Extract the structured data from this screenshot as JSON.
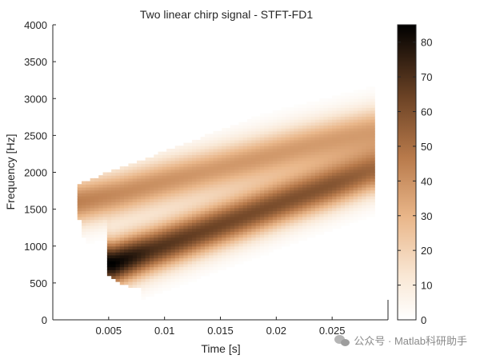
{
  "chart_data": {
    "type": "heatmap",
    "title": "Two linear chirp signal - STFT-FD1",
    "xlabel": "Time [s]",
    "ylabel": "Frequency [Hz]",
    "xlim": [
      0,
      0.03
    ],
    "ylim": [
      0,
      4000
    ],
    "xticks": [
      0.005,
      0.01,
      0.015,
      0.02,
      0.025
    ],
    "xtick_labels": [
      "0.005",
      "0.01",
      "0.015",
      "0.02",
      "0.025"
    ],
    "yticks": [
      0,
      500,
      1000,
      1500,
      2000,
      2500,
      3000,
      3500,
      4000
    ],
    "ytick_labels": [
      "0",
      "500",
      "1000",
      "1500",
      "2000",
      "2500",
      "3000",
      "3500",
      "4000"
    ],
    "colorbar": {
      "limits": [
        0,
        85
      ],
      "ticks": [
        0,
        10,
        20,
        30,
        40,
        50,
        60,
        70,
        80
      ],
      "tick_labels": [
        "0",
        "10",
        "20",
        "30",
        "40",
        "50",
        "60",
        "70",
        "80"
      ],
      "colormap": "copper-reversed"
    },
    "series": [
      {
        "name": "",
        "kind": "chirp-ridge",
        "t": [
          0.0055,
          0.009,
          0.013,
          0.017,
          0.021,
          0.025,
          0.0285
        ],
        "f": [
          770,
          960,
          1180,
          1400,
          1620,
          1830,
          2020
        ],
        "peak": [
          85,
          70,
          65,
          62,
          60,
          58,
          52
        ]
      },
      {
        "name": "",
        "kind": "chirp-ridge",
        "t": [
          0.0025,
          0.006,
          0.01,
          0.014,
          0.018,
          0.022,
          0.026,
          0.0285
        ],
        "f": [
          1610,
          1720,
          1880,
          2030,
          2180,
          2340,
          2490,
          2580
        ],
        "peak": [
          45,
          42,
          40,
          38,
          38,
          37,
          36,
          35
        ]
      }
    ],
    "grid": false
  },
  "watermark": {
    "text": "公众号 · Matlab科研助手",
    "icon": "wechat-icon"
  }
}
